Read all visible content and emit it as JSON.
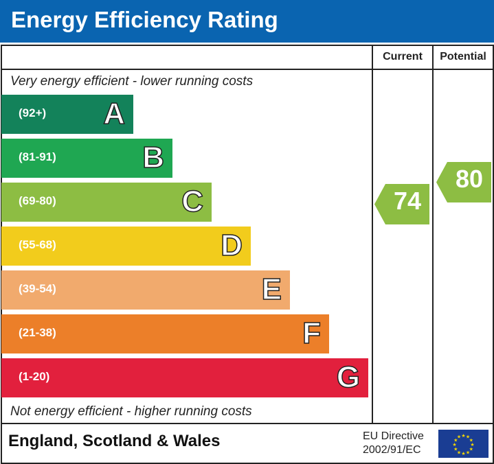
{
  "title": "Energy Efficiency Rating",
  "columns": {
    "current": "Current",
    "potential": "Potential"
  },
  "top_caption": "Very energy efficient - lower running costs",
  "bottom_caption": "Not energy efficient - higher running costs",
  "footer": {
    "region": "England, Scotland & Wales",
    "directive_line1": "EU Directive",
    "directive_line2": "2002/91/EC"
  },
  "colors": {
    "header": "#0a64b0",
    "eu_flag": "#1a3d93"
  },
  "chart_data": {
    "type": "bar",
    "bands": [
      {
        "letter": "A",
        "range": "(92+)",
        "color": "#13825a"
      },
      {
        "letter": "B",
        "range": "(81-91)",
        "color": "#1fa752"
      },
      {
        "letter": "C",
        "range": "(69-80)",
        "color": "#8dbd43"
      },
      {
        "letter": "D",
        "range": "(55-68)",
        "color": "#f2cc1c"
      },
      {
        "letter": "E",
        "range": "(39-54)",
        "color": "#f1aa6d"
      },
      {
        "letter": "F",
        "range": "(21-38)",
        "color": "#ec7f29"
      },
      {
        "letter": "G",
        "range": "(1-20)",
        "color": "#e2203d"
      }
    ],
    "current": {
      "value": "74",
      "band": "C",
      "color": "#8dbd43"
    },
    "potential": {
      "value": "80",
      "band": "C",
      "color": "#8dbd43"
    }
  }
}
